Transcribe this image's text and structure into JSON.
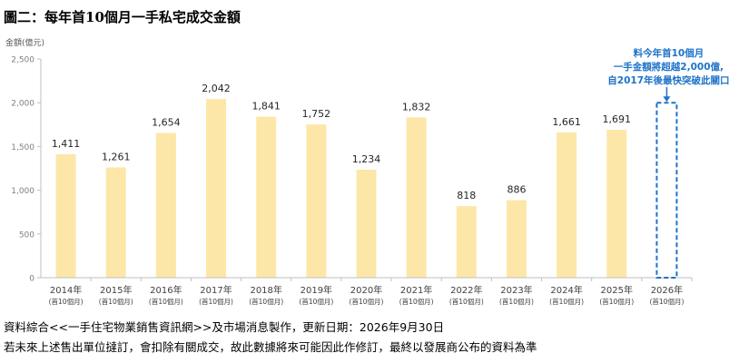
{
  "figure_title": "圖二：每年首10個月一手私宅成交金額",
  "source_note": "資料綜合<<一手住宅物業銷售資訊網>>及市場消息製作，更新日期：2026年9月30日",
  "disclaimer_note": "若未來上述售出單位撻訂，會扣除有關成交，故此數據將來可能因此作修訂，最終以發展商公布的資料為準",
  "colors": {
    "bar": "#fde7a8",
    "forecast": "#1e73c8",
    "axis": "#bfbfbf",
    "tick_text": "#7f7f7f"
  },
  "chart_data": {
    "type": "bar",
    "ylabel": "金額(億元)",
    "ylim": [
      0,
      2500
    ],
    "yticks": [
      0,
      500,
      1000,
      1500,
      2000,
      2500
    ],
    "ytick_labels": [
      "0",
      "500",
      "1,000",
      "1,500",
      "2,000",
      "2,500"
    ],
    "grid": false,
    "categories": [
      "2014年",
      "2015年",
      "2016年",
      "2017年",
      "2018年",
      "2019年",
      "2020年",
      "2021年",
      "2022年",
      "2023年",
      "2024年",
      "2025年",
      "2026年"
    ],
    "category_sublabel": "(首10個月)",
    "values": [
      1411,
      1261,
      1654,
      2042,
      1841,
      1752,
      1234,
      1832,
      818,
      886,
      1661,
      1691,
      null
    ],
    "value_labels": [
      "1,411",
      "1,261",
      "1,654",
      "2,042",
      "1,841",
      "1,752",
      "1,234",
      "1,832",
      "818",
      "886",
      "1,661",
      "1,691",
      ""
    ],
    "forecast": {
      "category": "2026年",
      "style": "dashed-outline",
      "annotation": [
        "料今年首10個月",
        "一手金額將超越2,000億,",
        "自2017年後最快突破此關口"
      ]
    }
  }
}
